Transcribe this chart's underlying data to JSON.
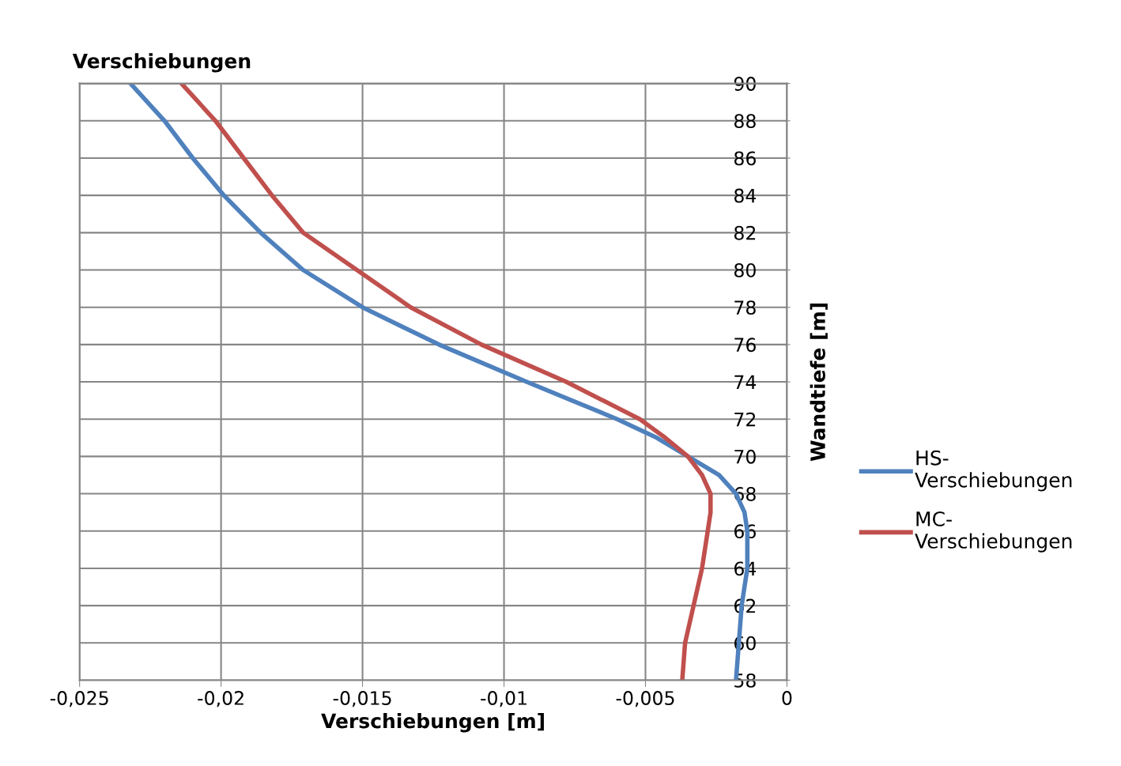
{
  "chart_data": {
    "type": "line",
    "title": "Verschiebungen",
    "xlabel": "Verschiebungen [m]",
    "ylabel": "Wandtiefe [m]",
    "xlim": [
      -0.025,
      0
    ],
    "ylim": [
      58,
      90
    ],
    "xticks": [
      {
        "value": -0.025,
        "label": "-0,025"
      },
      {
        "value": -0.02,
        "label": "-0,02"
      },
      {
        "value": -0.015,
        "label": "-0,015"
      },
      {
        "value": -0.01,
        "label": "-0,01"
      },
      {
        "value": -0.005,
        "label": "-0,005"
      },
      0
    ],
    "yticks": [
      58,
      60,
      62,
      64,
      66,
      68,
      70,
      72,
      74,
      76,
      78,
      80,
      82,
      84,
      86,
      88,
      90
    ],
    "grid": true,
    "legend": "right",
    "marker": "none",
    "line_style": "solid",
    "series": [
      {
        "name": "HS-\nVerschiebungen",
        "color": "#4f81bd",
        "x": [
          -0.0232,
          -0.022,
          -0.021,
          -0.0199,
          -0.0186,
          -0.0171,
          -0.015,
          -0.0123,
          -0.0092,
          -0.006,
          -0.0046,
          -0.0035,
          -0.0024,
          -0.0018,
          -0.0015,
          -0.0014,
          -0.0014,
          -0.0016,
          -0.0017,
          -0.0018
        ],
        "values": [
          90,
          88,
          86,
          84,
          82,
          80,
          78,
          76,
          74,
          72,
          71,
          70,
          69,
          68,
          67,
          66,
          64,
          62,
          60,
          58
        ]
      },
      {
        "name": "MC-\nVerschiebungen",
        "color": "#c0504d",
        "x": [
          -0.0214,
          -0.0202,
          -0.0192,
          -0.0182,
          -0.0171,
          -0.0152,
          -0.0133,
          -0.0108,
          -0.0078,
          -0.0052,
          -0.0043,
          -0.0035,
          -0.003,
          -0.0027,
          -0.0027,
          -0.0028,
          -0.003,
          -0.0033,
          -0.0036,
          -0.0037
        ],
        "values": [
          90,
          88,
          86,
          84,
          82,
          80,
          78,
          76,
          74,
          72,
          71,
          70,
          69,
          68,
          67,
          66,
          64,
          62,
          60,
          58
        ]
      }
    ]
  }
}
